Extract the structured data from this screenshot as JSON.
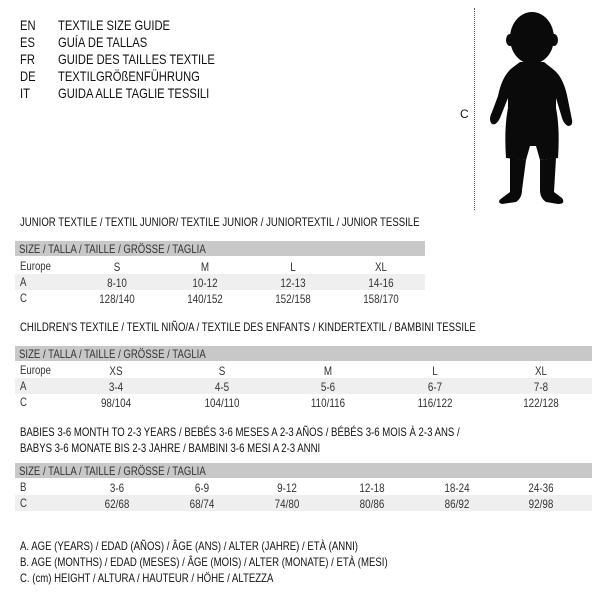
{
  "header": {
    "languages": [
      {
        "code": "EN",
        "text": "TEXTILE SIZE GUIDE"
      },
      {
        "code": "ES",
        "text": "GUÍA DE TALLAS"
      },
      {
        "code": "FR",
        "text": "GUIDE DES TAILLES TEXTILE"
      },
      {
        "code": "DE",
        "text": "TEXTILGRÖßENFÜHRUNG"
      },
      {
        "code": "IT",
        "text": "GUIDA ALLE TAGLIE TESSILI"
      }
    ]
  },
  "figure": {
    "measure_label": "C",
    "icon": "child-silhouette"
  },
  "size_header": "SIZE / TALLA / TAILLE / GRÖSSE / TAGLIA",
  "junior": {
    "title": "JUNIOR TEXTILE / TEXTIL JUNIOR/ TEXTILE JUNIOR / JUNIORTEXTIL / JUNIOR TESSILE",
    "rows": [
      {
        "label": "Europe",
        "values": [
          "S",
          "M",
          "L",
          "XL"
        ]
      },
      {
        "label": "A",
        "values": [
          "8-10",
          "10-12",
          "12-13",
          "14-16"
        ]
      },
      {
        "label": "C",
        "values": [
          "128/140",
          "140/152",
          "152/158",
          "158/170"
        ]
      }
    ]
  },
  "children": {
    "title": "CHILDREN'S TEXTILE / TEXTIL NIÑO/A / TEXTILE DES ENFANTS / KINDERTEXTIL / BAMBINI TESSILE",
    "rows": [
      {
        "label": "Europe",
        "values": [
          "XS",
          "S",
          "M",
          "L",
          "XL"
        ]
      },
      {
        "label": "A",
        "values": [
          "3-4",
          "4-5",
          "5-6",
          "6-7",
          "7-8"
        ]
      },
      {
        "label": "C",
        "values": [
          "98/104",
          "104/110",
          "110/116",
          "116/122",
          "122/128"
        ]
      }
    ]
  },
  "babies": {
    "title_line1": "BABIES 3-6 MONTH TO 2-3 YEARS / BEBÉS 3-6 MESES A 2-3 AÑOS / BÉBÉS 3-6 MOIS À 2-3 ANS /",
    "title_line2": "BABYS 3-6 MONATE BIS 2-3 JAHRE / BAMBINI 3-6 MESI A 2-3 ANNI",
    "rows": [
      {
        "label": "B",
        "values": [
          "3-6",
          "6-9",
          "9-12",
          "12-18",
          "18-24",
          "24-36"
        ]
      },
      {
        "label": "C",
        "values": [
          "62/68",
          "68/74",
          "74/80",
          "80/86",
          "86/92",
          "92/98"
        ]
      }
    ]
  },
  "legend": [
    "A. AGE (YEARS) / EDAD (AÑOS) / ÂGE (ANS) / ALTER (JAHRE) / ETÀ (ANNI)",
    "B. AGE (MONTHS) / EDAD (MESES) / ÂGE (MOIS) / ALTER (MONATE) / ETÀ (MESI)",
    "C. (cm) HEIGHT / ALTURA / HAUTEUR / HÖHE / ALTEZZA"
  ]
}
